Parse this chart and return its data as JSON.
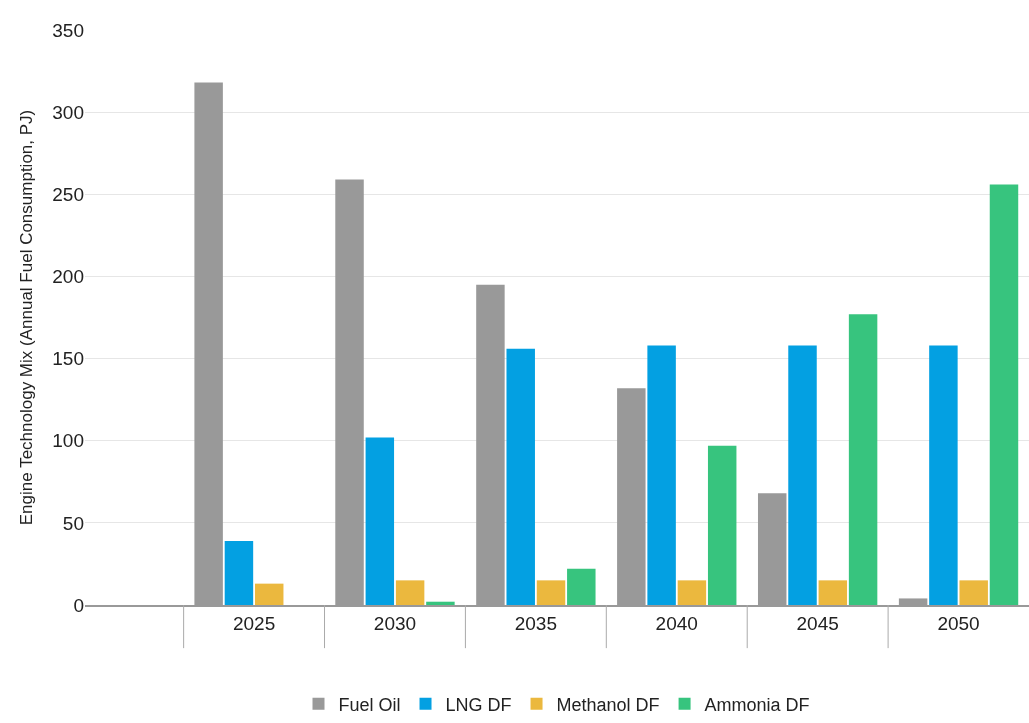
{
  "chart_data": {
    "type": "bar",
    "ylabel": "Engine Technology Mix (Annual Fuel Consumption, PJ)",
    "categories": [
      "2025",
      "2030",
      "2035",
      "2040",
      "2045",
      "2050"
    ],
    "series": [
      {
        "name": "Fuel Oil",
        "color": "#999999",
        "values": [
          318,
          259,
          195,
          132,
          68,
          4
        ]
      },
      {
        "name": "LNG DF",
        "color": "#03a0e2",
        "values": [
          39,
          102,
          156,
          158,
          158,
          158
        ]
      },
      {
        "name": "Methanol DF",
        "color": "#ebb83e",
        "values": [
          13,
          15,
          15,
          15,
          15,
          15
        ]
      },
      {
        "name": "Ammonia DF",
        "color": "#37c47e",
        "values": [
          0,
          2,
          22,
          97,
          177,
          256
        ]
      }
    ],
    "ylim": [
      0,
      350
    ],
    "yticks": [
      0,
      50,
      100,
      150,
      200,
      250,
      300,
      350
    ],
    "grid": "y",
    "legend": "bottom"
  }
}
